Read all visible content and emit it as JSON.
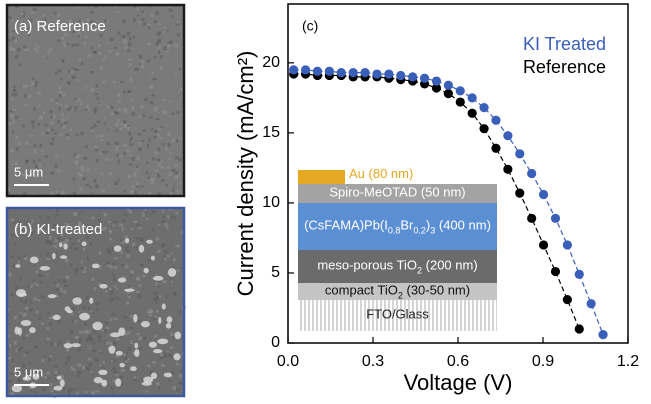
{
  "panels": [
    {
      "label": "(a) Reference",
      "scale_bar": "5 μm",
      "border": "#1a1a1a"
    },
    {
      "label": "(b) KI-treated",
      "scale_bar": "5 μm",
      "border": "#3d5a9e"
    }
  ],
  "chart_data": {
    "type": "scatter-line",
    "panel_label": "(c)",
    "x_label": "Voltage (V)",
    "y_label": "Current density (mA/cm²)",
    "xlim": [
      0,
      1.2
    ],
    "ylim": [
      0,
      24.2
    ],
    "xticks": [
      {
        "value": 0,
        "label": "0.0"
      },
      0.3,
      0.6,
      0.9,
      1.2
    ],
    "yticks": [
      0,
      5,
      10,
      15,
      20
    ],
    "legend": "top-right",
    "series": [
      {
        "name": "KI Treated",
        "color": "#3a5fb8",
        "x": [
          0.02,
          0.062,
          0.104,
          0.146,
          0.188,
          0.23,
          0.272,
          0.314,
          0.356,
          0.398,
          0.44,
          0.482,
          0.524,
          0.566,
          0.608,
          0.65,
          0.692,
          0.734,
          0.776,
          0.818,
          0.86,
          0.902,
          0.944,
          0.986,
          1.028,
          1.07,
          1.112
        ],
        "values": [
          19.5,
          19.5,
          19.4,
          19.4,
          19.3,
          19.3,
          19.3,
          19.2,
          19.2,
          19.1,
          19.0,
          18.9,
          18.7,
          18.4,
          18.0,
          17.5,
          16.8,
          15.9,
          14.8,
          13.5,
          12.1,
          10.6,
          8.9,
          7.0,
          4.9,
          2.8,
          0.6
        ]
      },
      {
        "name": "Reference",
        "color": "#000000",
        "x": [
          0.02,
          0.062,
          0.104,
          0.146,
          0.188,
          0.23,
          0.272,
          0.314,
          0.356,
          0.398,
          0.44,
          0.482,
          0.524,
          0.566,
          0.608,
          0.65,
          0.692,
          0.734,
          0.776,
          0.818,
          0.86,
          0.902,
          0.944,
          0.986,
          1.028
        ],
        "values": [
          19.2,
          19.2,
          19.1,
          19.1,
          19.1,
          19.0,
          19.0,
          19.0,
          18.9,
          18.8,
          18.7,
          18.5,
          18.2,
          17.8,
          17.2,
          16.4,
          15.3,
          13.9,
          12.4,
          10.7,
          8.9,
          7.0,
          5.1,
          3.1,
          1.0
        ]
      }
    ],
    "inset_layers": [
      {
        "parts": [
          "Au (80 nm)"
        ],
        "color": "#e5a823"
      },
      {
        "parts": [
          "Spiro-MeOTAD (50 nm)"
        ],
        "color": "#a3a3a3"
      },
      {
        "parts": [
          "(CsFAMA)Pb(I",
          "0.8",
          "Br",
          "0.2",
          ")",
          "3",
          " (400 nm)"
        ],
        "color": "#5b8fd3"
      },
      {
        "parts": [
          "meso-porous TiO",
          "2",
          " (200 nm)"
        ],
        "color": "#6b6b6b"
      },
      {
        "parts": [
          "compact TiO",
          "2",
          " (30-50 nm)"
        ],
        "color": "#c4c4c4"
      },
      {
        "parts": [
          "FTO/Glass"
        ],
        "color": "#ffffff"
      }
    ]
  }
}
